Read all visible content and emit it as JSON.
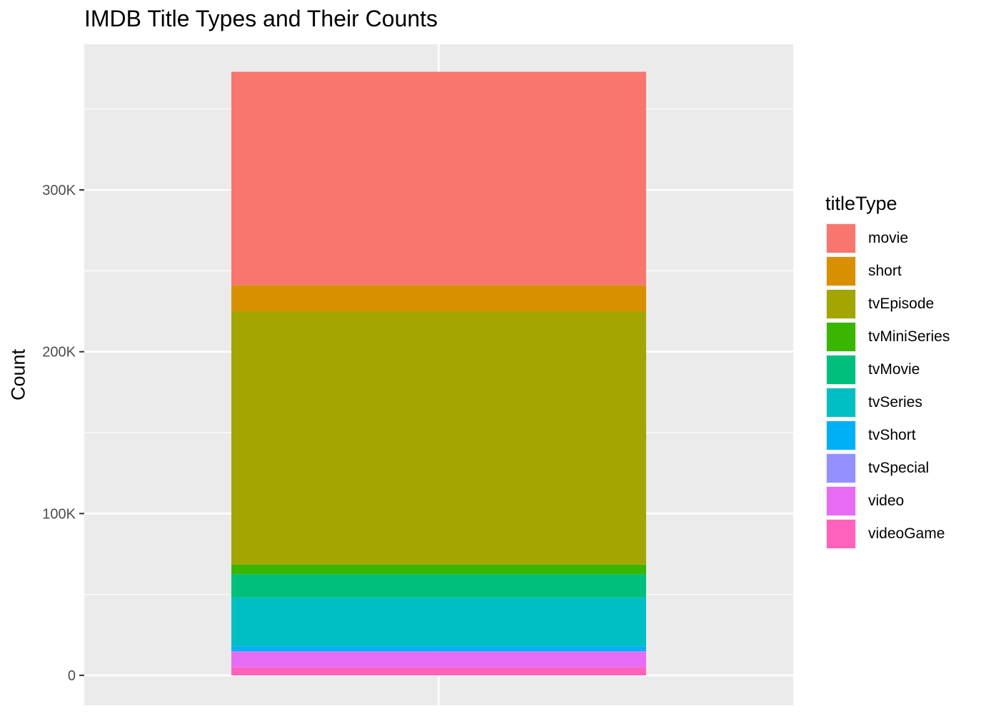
{
  "chart_data": {
    "type": "bar",
    "stacked": true,
    "title": "IMDB Title Types and Their Counts",
    "xlabel": "",
    "ylabel": "Count",
    "ylim": [
      -18500,
      390000
    ],
    "yticks": [
      0,
      100000,
      200000,
      300000
    ],
    "ytick_labels": [
      "0",
      "100K",
      "200K",
      "300K"
    ],
    "grid": true,
    "legend": {
      "title": "titleType",
      "position": "right"
    },
    "series": [
      {
        "name": "movie",
        "values": [
          132000
        ],
        "color": "#F8766D"
      },
      {
        "name": "short",
        "values": [
          16000
        ],
        "color": "#D89000"
      },
      {
        "name": "tvEpisode",
        "values": [
          156500
        ],
        "color": "#A3A500"
      },
      {
        "name": "tvMiniSeries",
        "values": [
          6000
        ],
        "color": "#39B600"
      },
      {
        "name": "tvMovie",
        "values": [
          14500
        ],
        "color": "#00BF7D"
      },
      {
        "name": "tvSeries",
        "values": [
          30000
        ],
        "color": "#00BFC4"
      },
      {
        "name": "tvShort",
        "values": [
          3000
        ],
        "color": "#00B0F6"
      },
      {
        "name": "tvSpecial",
        "values": [
          500
        ],
        "color": "#9590FF"
      },
      {
        "name": "video",
        "values": [
          9500
        ],
        "color": "#E76BF3"
      },
      {
        "name": "videoGame",
        "values": [
          5000
        ],
        "color": "#FF62BC"
      }
    ]
  }
}
